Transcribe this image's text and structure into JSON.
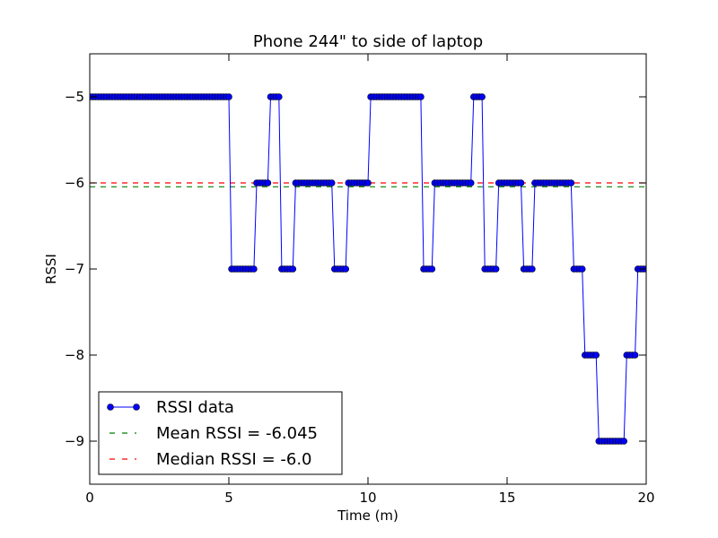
{
  "chart_data": {
    "type": "line",
    "title": "Phone 244\" to side of laptop",
    "xlabel": "Time (m)",
    "ylabel": "RSSI",
    "xlim": [
      0,
      20
    ],
    "ylim": [
      -9.5,
      -4.5
    ],
    "xticks": [
      0,
      5,
      10,
      15,
      20
    ],
    "yticks": [
      -5,
      -6,
      -7,
      -8,
      -9
    ],
    "xtick_labels": [
      "0",
      "5",
      "10",
      "15",
      "20"
    ],
    "ytick_labels": [
      "−5",
      "−6",
      "−7",
      "−8",
      "−9"
    ],
    "grid": false,
    "legend_position": "lower-left",
    "series": [
      {
        "name": "RSSI data",
        "color": "#0000ff",
        "marker": "circle",
        "segments": [
          {
            "x_start": 0.0,
            "x_end": 5.0,
            "y": -5
          },
          {
            "x_start": 5.1,
            "x_end": 5.9,
            "y": -7
          },
          {
            "x_start": 6.0,
            "x_end": 6.4,
            "y": -6
          },
          {
            "x_start": 6.5,
            "x_end": 6.8,
            "y": -5
          },
          {
            "x_start": 6.9,
            "x_end": 7.3,
            "y": -7
          },
          {
            "x_start": 7.4,
            "x_end": 8.7,
            "y": -6
          },
          {
            "x_start": 8.8,
            "x_end": 9.2,
            "y": -7
          },
          {
            "x_start": 9.3,
            "x_end": 10.0,
            "y": -6
          },
          {
            "x_start": 10.1,
            "x_end": 11.9,
            "y": -5
          },
          {
            "x_start": 12.0,
            "x_end": 12.3,
            "y": -7
          },
          {
            "x_start": 12.4,
            "x_end": 13.7,
            "y": -6
          },
          {
            "x_start": 13.8,
            "x_end": 14.1,
            "y": -5
          },
          {
            "x_start": 14.2,
            "x_end": 14.6,
            "y": -7
          },
          {
            "x_start": 14.7,
            "x_end": 15.5,
            "y": -6
          },
          {
            "x_start": 15.6,
            "x_end": 15.9,
            "y": -7
          },
          {
            "x_start": 16.0,
            "x_end": 17.3,
            "y": -6
          },
          {
            "x_start": 17.4,
            "x_end": 17.7,
            "y": -7
          },
          {
            "x_start": 17.8,
            "x_end": 18.2,
            "y": -8
          },
          {
            "x_start": 18.3,
            "x_end": 19.2,
            "y": -9
          },
          {
            "x_start": 19.3,
            "x_end": 19.6,
            "y": -8
          },
          {
            "x_start": 19.7,
            "x_end": 20.0,
            "y": -7
          }
        ]
      },
      {
        "name": "Mean RSSI = -6.045",
        "color": "#008000",
        "style": "dashed",
        "y": -6.045
      },
      {
        "name": "Median RSSI = -6.0",
        "color": "#ff0000",
        "style": "dashed",
        "y": -6.0
      }
    ]
  }
}
